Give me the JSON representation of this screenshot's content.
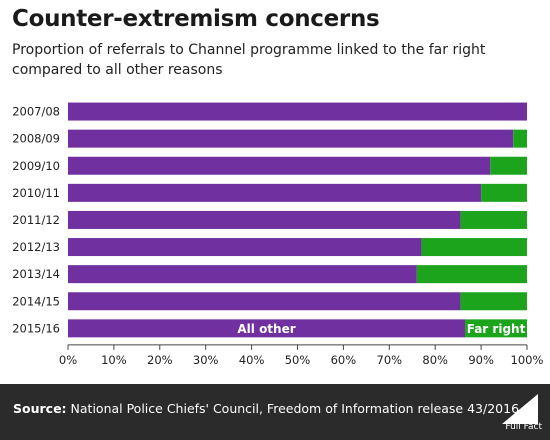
{
  "header": {
    "title": "Counter-extremism concerns",
    "subtitle": "Proportion of referrals to Channel programme linked to the far right compared to all other reasons"
  },
  "chart_data": {
    "type": "bar",
    "orientation": "horizontal",
    "stacked": true,
    "categories": [
      "2007/08",
      "2008/09",
      "2009/10",
      "2010/11",
      "2011/12",
      "2012/13",
      "2013/14",
      "2014/15",
      "2015/16"
    ],
    "series": [
      {
        "name": "All other",
        "color": "#7030a0",
        "values": [
          100,
          97,
          92,
          90,
          85.5,
          77,
          76,
          85.5,
          86.5
        ]
      },
      {
        "name": "Far right",
        "color": "#1ca51c",
        "values": [
          0,
          3,
          8,
          10,
          14.5,
          23,
          24,
          14.5,
          13.5
        ]
      }
    ],
    "xlim": [
      0,
      100
    ],
    "xticks": [
      "0%",
      "10%",
      "20%",
      "30%",
      "40%",
      "50%",
      "60%",
      "70%",
      "80%",
      "90%",
      "100%"
    ],
    "grid": false,
    "legend": "inline labels on last bar"
  },
  "footer": {
    "source_label": "Source:",
    "source_text": "National Police Chiefs' Council, Freedom of Information release 43/2016",
    "logo_text": "Full Fact",
    "logo_icon": "full-fact-logo-icon"
  },
  "colors": {
    "all_other": "#7030a0",
    "far_right": "#1ca51c",
    "footer_bg": "#2b2b2b"
  }
}
